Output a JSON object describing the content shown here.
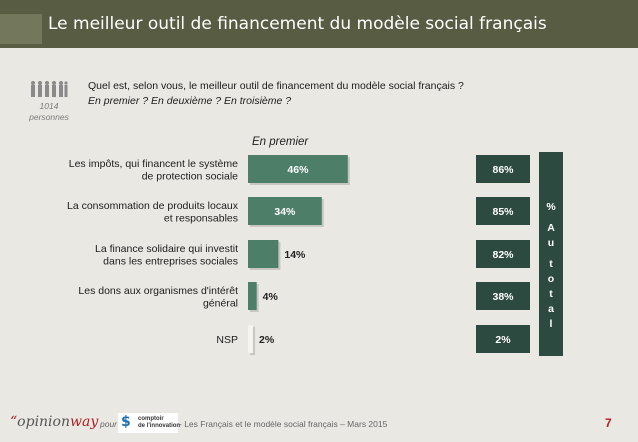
{
  "title": "Le meilleur outil de financement du modèle social français",
  "respondents": {
    "count": "1014",
    "label": "personnes"
  },
  "question": {
    "text": "Quel est, selon vous, le meilleur outil de financement du modèle social français ?",
    "subtext": "En premier ? En deuxième ? En troisième ?"
  },
  "chart_data": {
    "type": "bar",
    "orientation": "horizontal",
    "categories": [
      "Les impôts, qui financent le système de protection sociale",
      "La consommation de produits locaux et responsables",
      "La finance solidaire qui investit dans les entreprises sociales",
      "Les dons aux organismes d'intérêt général",
      "NSP"
    ],
    "series": [
      {
        "name": "En premier",
        "values": [
          46,
          34,
          14,
          4,
          2
        ],
        "labels": [
          "46%",
          "34%",
          "14%",
          "4%",
          "2%"
        ]
      },
      {
        "name": "% Au total",
        "values": [
          86,
          85,
          82,
          38,
          2
        ],
        "labels": [
          "86%",
          "85%",
          "82%",
          "38%",
          "2%"
        ]
      }
    ],
    "xlim": [
      0,
      100
    ],
    "grid": false,
    "colors": {
      "bar": "#4d7f68",
      "nsp_bar": "#f5f5f0",
      "total_box": "#2c4a3f",
      "title_bar": "#585c43",
      "brand_red": "#b01e23"
    }
  },
  "footer": {
    "logo_quote": "“",
    "logo_opinion": "opinion",
    "logo_way": "way",
    "pour": "pour",
    "partner_line1": "comptoir",
    "partner_line2": "de l'innovation",
    "source": "- Les Français et le modèle social français – Mars 2015",
    "page_number": "7"
  }
}
